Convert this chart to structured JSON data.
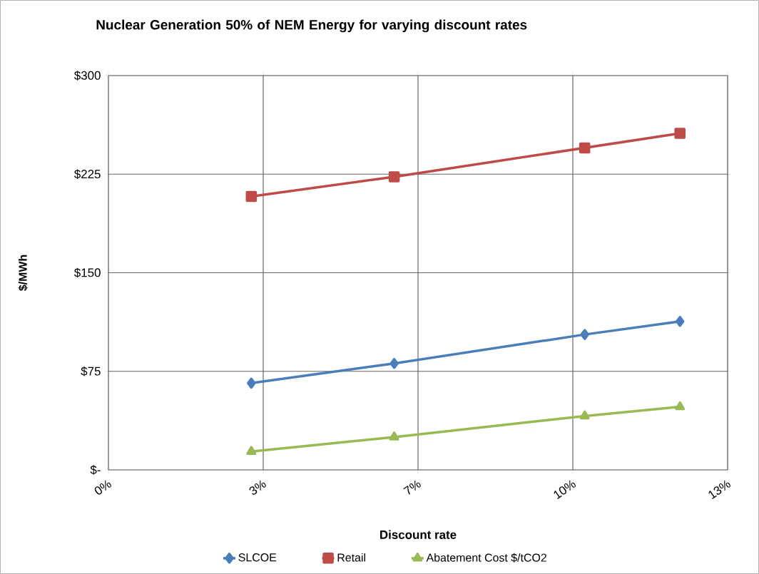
{
  "chart_data": {
    "type": "line",
    "title": "Nuclear Generation 50% of NEM Energy for varying discount rates",
    "xlabel": "Discount rate",
    "ylabel": "$/MWh",
    "x": [
      3,
      6,
      10,
      12
    ],
    "series": [
      {
        "name": "SLCOE",
        "color": "#4a7ebb",
        "marker": "diamond",
        "values": [
          66,
          81,
          103,
          113
        ]
      },
      {
        "name": "Retail",
        "color": "#be4b48",
        "marker": "square",
        "values": [
          208,
          223,
          245,
          256
        ]
      },
      {
        "name": "Abatement Cost $/tCO2",
        "color": "#98b954",
        "marker": "triangle",
        "values": [
          14,
          25,
          41,
          48
        ]
      }
    ],
    "xlim": [
      0,
      13
    ],
    "xticks": [
      {
        "value": 0,
        "label": "0%"
      },
      {
        "value": 3.25,
        "label": "3%"
      },
      {
        "value": 6.5,
        "label": "7%"
      },
      {
        "value": 9.75,
        "label": "10%"
      },
      {
        "value": 13,
        "label": "13%"
      }
    ],
    "ylim": [
      0,
      300
    ],
    "yticks": [
      {
        "value": 0,
        "label": "$-"
      },
      {
        "value": 75,
        "label": "$75"
      },
      {
        "value": 150,
        "label": "$150"
      },
      {
        "value": 225,
        "label": "$225"
      },
      {
        "value": 300,
        "label": "$300"
      }
    ],
    "grid": true,
    "legend": "bottom",
    "line_style": "solid"
  }
}
